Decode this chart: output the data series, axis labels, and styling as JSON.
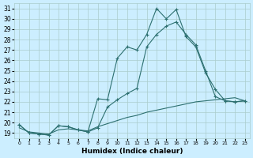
{
  "xlabel": "Humidex (Indice chaleur)",
  "bg_color": "#cceeff",
  "grid_color": "#aacccc",
  "line_color": "#2d7070",
  "xlim": [
    -0.5,
    23.5
  ],
  "ylim": [
    18.5,
    31.5
  ],
  "yticks": [
    19,
    20,
    21,
    22,
    23,
    24,
    25,
    26,
    27,
    28,
    29,
    30,
    31
  ],
  "xticks": [
    0,
    1,
    2,
    3,
    4,
    5,
    6,
    7,
    8,
    9,
    10,
    11,
    12,
    13,
    14,
    15,
    16,
    17,
    18,
    19,
    20,
    21,
    22,
    23
  ],
  "series": {
    "line1_x": [
      0,
      1,
      2,
      3,
      4,
      5,
      6,
      7,
      8,
      9,
      10,
      11,
      12,
      13,
      14,
      15,
      16,
      17,
      18,
      19,
      20,
      21,
      22,
      23
    ],
    "line1_y": [
      19.8,
      19.0,
      18.9,
      18.8,
      19.7,
      19.6,
      19.3,
      19.1,
      22.3,
      22.2,
      26.2,
      27.3,
      27.0,
      28.5,
      31.0,
      30.0,
      30.9,
      28.3,
      27.3,
      24.8,
      23.2,
      22.1,
      22.0,
      22.1
    ],
    "line2_x": [
      0,
      1,
      2,
      3,
      4,
      5,
      6,
      7,
      8,
      9,
      10,
      11,
      12,
      13,
      14,
      15,
      16,
      17,
      18,
      19,
      20,
      21,
      22,
      23
    ],
    "line2_y": [
      19.8,
      19.0,
      18.9,
      18.8,
      19.7,
      19.6,
      19.3,
      19.1,
      19.5,
      21.5,
      22.2,
      22.8,
      23.3,
      27.3,
      28.5,
      29.3,
      29.7,
      28.5,
      27.5,
      25.0,
      22.5,
      22.1,
      22.0,
      22.1
    ],
    "line3_x": [
      0,
      1,
      2,
      3,
      4,
      5,
      6,
      7,
      8,
      9,
      10,
      11,
      12,
      13,
      14,
      15,
      16,
      17,
      18,
      19,
      20,
      21,
      22,
      23
    ],
    "line3_y": [
      19.5,
      19.1,
      19.0,
      18.9,
      19.3,
      19.4,
      19.3,
      19.2,
      19.6,
      19.9,
      20.2,
      20.5,
      20.7,
      21.0,
      21.2,
      21.4,
      21.6,
      21.8,
      22.0,
      22.1,
      22.2,
      22.3,
      22.4,
      22.1
    ]
  }
}
